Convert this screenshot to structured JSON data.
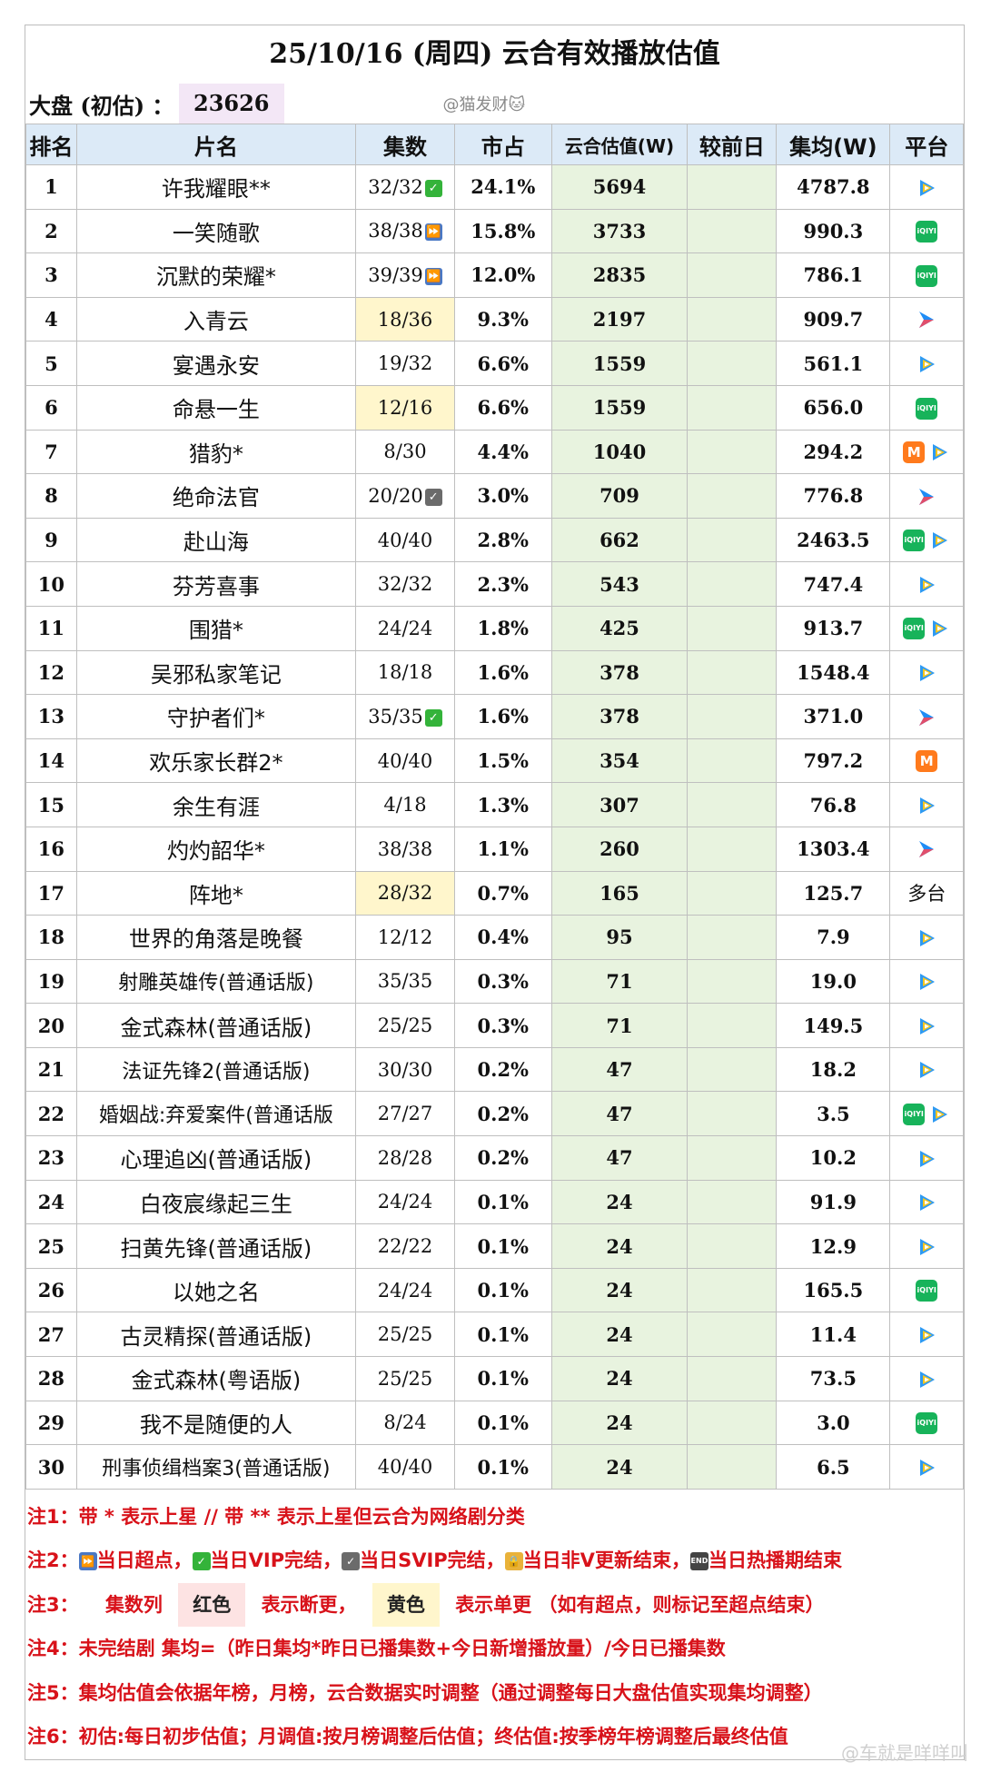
{
  "title": "25/10/16 (周四) 云合有效播放估值",
  "market": {
    "label": "大盘 (初估) ：",
    "value": "23626",
    "watermark": "@猫发财🐱"
  },
  "headers": [
    "排名",
    "片名",
    "集数",
    "市占",
    "云合估值(W)",
    "较前日",
    "集均(W)",
    "平台"
  ],
  "rows": [
    {
      "rank": "1",
      "name": "许我耀眼**",
      "ep": "32/32",
      "epmark": "vip",
      "share": "24.1%",
      "est": "5694",
      "diff": "",
      "avg": "4787.8",
      "plat": [
        "tencent"
      ]
    },
    {
      "rank": "2",
      "name": "一笑随歌",
      "ep": "38/38",
      "epmark": "peak",
      "share": "15.8%",
      "est": "3733",
      "diff": "",
      "avg": "990.3",
      "plat": [
        "iqiyi"
      ]
    },
    {
      "rank": "3",
      "name": "沉默的荣耀*",
      "ep": "39/39",
      "epmark": "peak",
      "share": "12.0%",
      "est": "2835",
      "diff": "",
      "avg": "786.1",
      "plat": [
        "iqiyi"
      ]
    },
    {
      "rank": "4",
      "name": "入青云",
      "ep": "18/36",
      "epmark": "",
      "eph": "yellow",
      "share": "9.3%",
      "est": "2197",
      "diff": "",
      "avg": "909.7",
      "plat": [
        "youku"
      ]
    },
    {
      "rank": "5",
      "name": "宴遇永安",
      "ep": "19/32",
      "epmark": "",
      "share": "6.6%",
      "est": "1559",
      "diff": "",
      "avg": "561.1",
      "plat": [
        "tencent"
      ]
    },
    {
      "rank": "6",
      "name": "命悬一生",
      "ep": "12/16",
      "epmark": "",
      "eph": "yellow",
      "share": "6.6%",
      "est": "1559",
      "diff": "",
      "avg": "656.0",
      "plat": [
        "iqiyi"
      ]
    },
    {
      "rank": "7",
      "name": "猎豹*",
      "ep": "8/30",
      "epmark": "",
      "share": "4.4%",
      "est": "1040",
      "diff": "",
      "avg": "294.2",
      "plat": [
        "mango",
        "tencent"
      ]
    },
    {
      "rank": "8",
      "name": "绝命法官",
      "ep": "20/20",
      "epmark": "svip",
      "share": "3.0%",
      "est": "709",
      "diff": "",
      "avg": "776.8",
      "plat": [
        "youku"
      ]
    },
    {
      "rank": "9",
      "name": "赴山海",
      "ep": "40/40",
      "epmark": "",
      "share": "2.8%",
      "est": "662",
      "diff": "",
      "avg": "2463.5",
      "plat": [
        "iqiyi",
        "tencent"
      ]
    },
    {
      "rank": "10",
      "name": "芬芳喜事",
      "ep": "32/32",
      "epmark": "",
      "share": "2.3%",
      "est": "543",
      "diff": "",
      "avg": "747.4",
      "plat": [
        "tencent"
      ]
    },
    {
      "rank": "11",
      "name": "围猎*",
      "ep": "24/24",
      "epmark": "",
      "share": "1.8%",
      "est": "425",
      "diff": "",
      "avg": "913.7",
      "plat": [
        "iqiyi",
        "tencent"
      ]
    },
    {
      "rank": "12",
      "name": "吴邪私家笔记",
      "ep": "18/18",
      "epmark": "",
      "share": "1.6%",
      "est": "378",
      "diff": "",
      "avg": "1548.4",
      "plat": [
        "tencent"
      ]
    },
    {
      "rank": "13",
      "name": "守护者们*",
      "ep": "35/35",
      "epmark": "vip",
      "share": "1.6%",
      "est": "378",
      "diff": "",
      "avg": "371.0",
      "plat": [
        "youku"
      ]
    },
    {
      "rank": "14",
      "name": "欢乐家长群2*",
      "ep": "40/40",
      "epmark": "",
      "share": "1.5%",
      "est": "354",
      "diff": "",
      "avg": "797.2",
      "plat": [
        "mango"
      ]
    },
    {
      "rank": "15",
      "name": "余生有涯",
      "ep": "4/18",
      "epmark": "",
      "share": "1.3%",
      "est": "307",
      "diff": "",
      "avg": "76.8",
      "plat": [
        "tencent"
      ]
    },
    {
      "rank": "16",
      "name": "灼灼韶华*",
      "ep": "38/38",
      "epmark": "",
      "share": "1.1%",
      "est": "260",
      "diff": "",
      "avg": "1303.4",
      "plat": [
        "youku"
      ]
    },
    {
      "rank": "17",
      "name": "阵地*",
      "ep": "28/32",
      "epmark": "",
      "eph": "yellow",
      "share": "0.7%",
      "est": "165",
      "diff": "",
      "avg": "125.7",
      "plat": [],
      "plat_text": "多台"
    },
    {
      "rank": "18",
      "name": "世界的角落是晚餐",
      "ep": "12/12",
      "epmark": "",
      "share": "0.4%",
      "est": "95",
      "diff": "",
      "avg": "7.9",
      "plat": [
        "tencent"
      ]
    },
    {
      "rank": "19",
      "name": "射雕英雄传(普通话版)",
      "ep": "35/35",
      "epmark": "",
      "share": "0.3%",
      "est": "71",
      "diff": "",
      "avg": "19.0",
      "plat": [
        "tencent"
      ]
    },
    {
      "rank": "20",
      "name": "金式森林(普通话版)",
      "ep": "25/25",
      "epmark": "",
      "share": "0.3%",
      "est": "71",
      "diff": "",
      "avg": "149.5",
      "plat": [
        "tencent"
      ]
    },
    {
      "rank": "21",
      "name": "法证先锋2(普通话版)",
      "ep": "30/30",
      "epmark": "",
      "share": "0.2%",
      "est": "47",
      "diff": "",
      "avg": "18.2",
      "plat": [
        "tencent"
      ]
    },
    {
      "rank": "22",
      "name": "婚姻战:弃爱案件(普通话版",
      "ep": "27/27",
      "epmark": "",
      "share": "0.2%",
      "est": "47",
      "diff": "",
      "avg": "3.5",
      "plat": [
        "iqiyi",
        "tencent"
      ]
    },
    {
      "rank": "23",
      "name": "心理追凶(普通话版)",
      "ep": "28/28",
      "epmark": "",
      "share": "0.2%",
      "est": "47",
      "diff": "",
      "avg": "10.2",
      "plat": [
        "tencent"
      ]
    },
    {
      "rank": "24",
      "name": "白夜宸缘起三生",
      "ep": "24/24",
      "epmark": "",
      "share": "0.1%",
      "est": "24",
      "diff": "",
      "avg": "91.9",
      "plat": [
        "tencent"
      ]
    },
    {
      "rank": "25",
      "name": "扫黄先锋(普通话版)",
      "ep": "22/22",
      "epmark": "",
      "share": "0.1%",
      "est": "24",
      "diff": "",
      "avg": "12.9",
      "plat": [
        "tencent"
      ]
    },
    {
      "rank": "26",
      "name": "以她之名",
      "ep": "24/24",
      "epmark": "",
      "share": "0.1%",
      "est": "24",
      "diff": "",
      "avg": "165.5",
      "plat": [
        "iqiyi"
      ]
    },
    {
      "rank": "27",
      "name": "古灵精探(普通话版)",
      "ep": "25/25",
      "epmark": "",
      "share": "0.1%",
      "est": "24",
      "diff": "",
      "avg": "11.4",
      "plat": [
        "tencent"
      ]
    },
    {
      "rank": "28",
      "name": "金式森林(粤语版)",
      "ep": "25/25",
      "epmark": "",
      "share": "0.1%",
      "est": "24",
      "diff": "",
      "avg": "73.5",
      "plat": [
        "tencent"
      ]
    },
    {
      "rank": "29",
      "name": "我不是随便的人",
      "ep": "8/24",
      "epmark": "",
      "share": "0.1%",
      "est": "24",
      "diff": "",
      "avg": "3.0",
      "plat": [
        "iqiyi"
      ]
    },
    {
      "rank": "30",
      "name": "刑事侦缉档案3(普通话版)",
      "ep": "40/40",
      "epmark": "",
      "share": "0.1%",
      "est": "24",
      "diff": "",
      "avg": "6.5",
      "plat": [
        "tencent"
      ]
    }
  ],
  "notes": {
    "n1": "注1：带 * 表示上星 // 带 ** 表示上星但云合为网络剧分类",
    "n2_k": "注2：",
    "n2_a": "当日超点，",
    "n2_b": "当日VIP完结，",
    "n2_c": "当日SVIP完结，",
    "n2_d": "当日非V更新结束，",
    "n2_e": "当日热播期结束",
    "n3_k": "注3：",
    "n3_a": "集数列",
    "n3_red": "红色",
    "n3_b": "表示断更，",
    "n3_yel": "黄色",
    "n3_c": "表示单更 （如有超点，则标记至超点结束）",
    "n4": "注4：未完结剧 集均=（昨日集均*昨日已播集数+今日新增播放量）/今日已播集数",
    "n5": "注5：集均估值会依据年榜，月榜，云合数据实时调整（通过调整每日大盘估值实现集均调整）",
    "n6": "注6：初估:每日初步估值；月调值:按月榜调整后估值；终估值:按季榜年榜调整后最终估值"
  },
  "footer_watermark": "@车就是咩咩叫",
  "colors": {
    "header_bg": "#dceaf7",
    "est_bg": "#e8f3df",
    "yellow": "#fff6cc",
    "note_red": "#d8121a",
    "market_bg": "#f3e7f6"
  },
  "icons": {
    "tencent": "tencent-video-icon",
    "iqiyi": "iqiyi-icon",
    "youku": "youku-icon",
    "mango": "mango-tv-icon",
    "vip": "vip-finished-check-icon",
    "svip": "svip-finished-check-icon",
    "peak": "peak-fastforward-icon"
  }
}
